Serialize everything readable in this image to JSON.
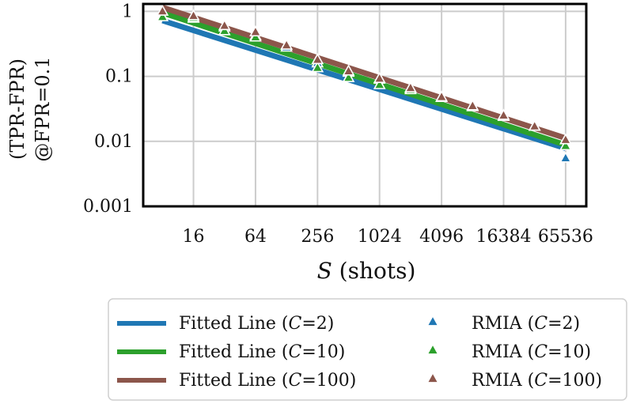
{
  "chart_data": {
    "type": "scatter",
    "title": "",
    "x_scale": "log2",
    "y_scale": "log10",
    "xlabel_var": "S",
    "xlabel_rest": " (shots)",
    "ylabel_line1": "(TPR-FPR)",
    "ylabel_line2": "@FPR=0.1",
    "x_ticks": [
      16,
      64,
      256,
      1024,
      4096,
      16384,
      65536
    ],
    "x_tick_labels": [
      "16",
      "64",
      "256",
      "1024",
      "4096",
      "16384",
      "65536"
    ],
    "y_ticks": [
      0.001,
      0.01,
      0.1,
      1
    ],
    "y_tick_labels": [
      "0.001",
      "0.01",
      "0.1",
      "1"
    ],
    "xlim": [
      5.2,
      104000
    ],
    "ylim": [
      0.001,
      1.3
    ],
    "grid": true,
    "legend_position": "bottom",
    "lines": [
      {
        "name_prefix": "Fitted Line (",
        "name_var": "C",
        "name_suffix": "=2)",
        "color": "#1f77b4",
        "x": [
          8,
          65536
        ],
        "y": [
          0.72,
          0.0078
        ]
      },
      {
        "name_prefix": "Fitted Line (",
        "name_var": "C",
        "name_suffix": "=10)",
        "color": "#2ca02c",
        "x": [
          8,
          65536
        ],
        "y": [
          0.95,
          0.0088
        ]
      },
      {
        "name_prefix": "Fitted Line (",
        "name_var": "C",
        "name_suffix": "=100)",
        "color": "#8c564b",
        "x": [
          8,
          65536
        ],
        "y": [
          1.15,
          0.0112
        ]
      }
    ],
    "series": [
      {
        "name_prefix": "RMIA (",
        "name_var": "C",
        "name_suffix": "=2)",
        "color": "#1f77b4",
        "x": [
          16,
          32,
          64,
          128,
          256,
          512,
          1024,
          2048,
          4096,
          8192,
          16384,
          32768,
          65536
        ],
        "y": [
          0.78,
          0.57,
          0.42,
          0.28,
          0.16,
          0.115,
          0.09,
          0.065,
          0.047,
          0.034,
          0.024,
          0.017,
          0.0055
        ]
      },
      {
        "name_prefix": "RMIA (",
        "name_var": "C",
        "name_suffix": "=10)",
        "color": "#2ca02c",
        "x": [
          8,
          16,
          32,
          64,
          128,
          256,
          512,
          1024,
          2048,
          4096,
          8192,
          16384,
          32768,
          65536
        ],
        "y": [
          0.82,
          0.8,
          0.5,
          0.4,
          0.3,
          0.135,
          0.095,
          0.074,
          0.062,
          0.047,
          0.034,
          0.024,
          0.017,
          0.0085
        ]
      },
      {
        "name_prefix": "RMIA (",
        "name_var": "C",
        "name_suffix": "=100)",
        "color": "#8c564b",
        "x": [
          8,
          16,
          32,
          64,
          128,
          256,
          512,
          1024,
          2048,
          4096,
          8192,
          16384,
          32768,
          65536
        ],
        "y": [
          1.0,
          0.85,
          0.6,
          0.48,
          0.3,
          0.18,
          0.12,
          0.092,
          0.066,
          0.048,
          0.035,
          0.025,
          0.017,
          0.0105
        ]
      }
    ]
  }
}
